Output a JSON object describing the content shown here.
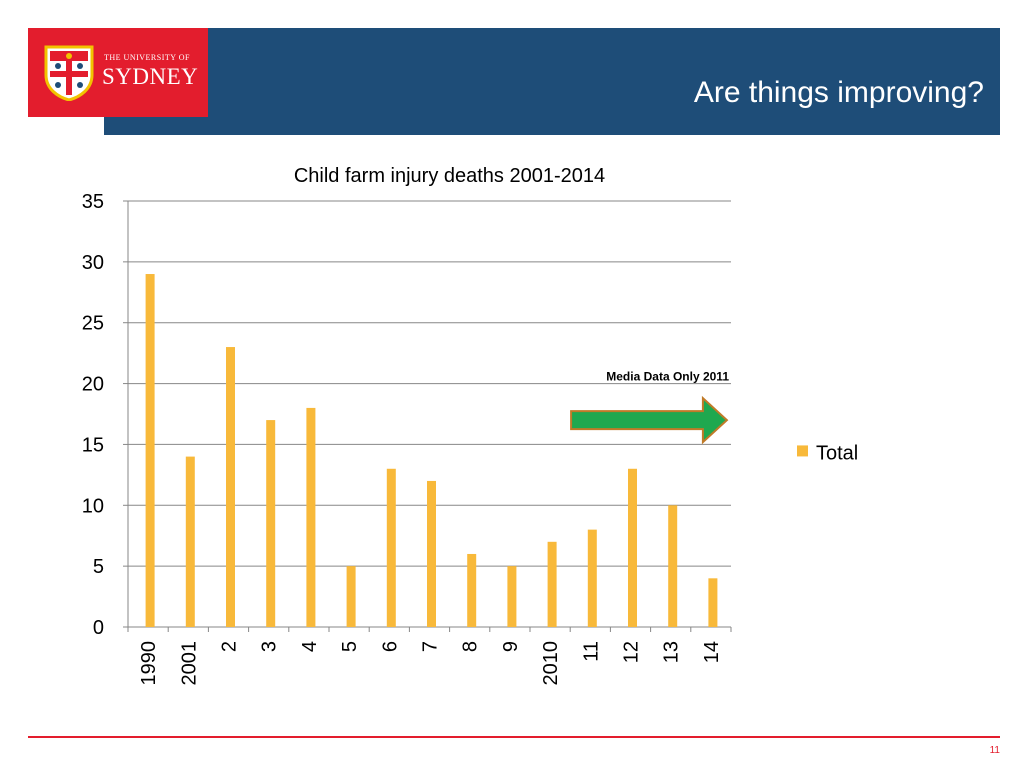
{
  "slide": {
    "title": "Are things improving?",
    "page_number": "11",
    "logo_text_small": "THE UNIVERSITY OF",
    "logo_text_big": "SYDNEY"
  },
  "colors": {
    "header_band": "#1e4d78",
    "logo_red": "#e31d2d",
    "bar": "#f8b93a",
    "arrow_fill": "#1fa84f",
    "arrow_stroke": "#c07a28"
  },
  "chart_data": {
    "type": "bar",
    "title": "Child farm injury deaths 2001-2014",
    "categories": [
      "1990",
      "2001",
      "2",
      "3",
      "4",
      "5",
      "6",
      "7",
      "8",
      "9",
      "2010",
      "11",
      "12",
      "13",
      "14"
    ],
    "series": [
      {
        "name": "Total",
        "values": [
          29,
          14,
          23,
          17,
          18,
          5,
          13,
          12,
          6,
          5,
          7,
          8,
          13,
          10,
          4
        ]
      }
    ],
    "ylim": [
      0,
      35
    ],
    "yticks": [
      0,
      5,
      10,
      15,
      20,
      25,
      30,
      35
    ],
    "grid": true,
    "legend": "right",
    "annotation": {
      "text": "Media Data Only 2011",
      "arrow_start_category": "2010",
      "arrow_end_category": "14",
      "arrow_y": 17
    }
  }
}
